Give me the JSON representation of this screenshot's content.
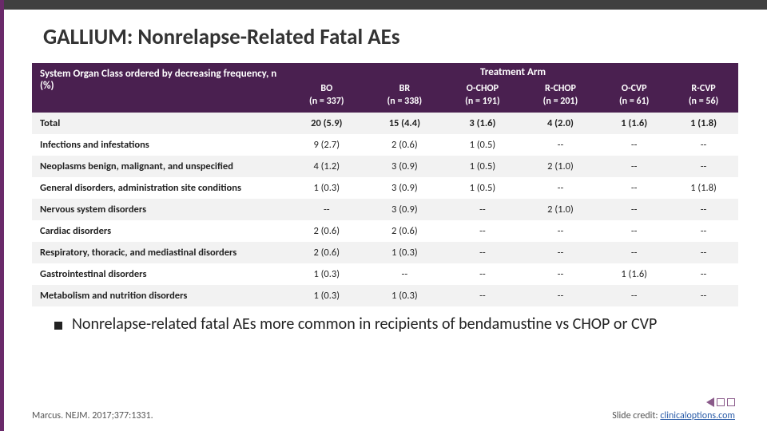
{
  "title": "GALLIUM: Nonrelapse-Related Fatal AEs",
  "table": {
    "row_header": "System Organ Class ordered by decreasing frequency, n (%)",
    "super_header": "Treatment Arm",
    "columns": [
      {
        "label": "BO",
        "n": "(n = 337)"
      },
      {
        "label": "BR",
        "n": "(n = 338)"
      },
      {
        "label": "O-CHOP",
        "n": "(n = 191)"
      },
      {
        "label": "R-CHOP",
        "n": "(n = 201)"
      },
      {
        "label": "O-CVP",
        "n": "(n = 61)"
      },
      {
        "label": "R-CVP",
        "n": "(n = 56)"
      }
    ],
    "rows": [
      {
        "label": "Total",
        "total": true,
        "cells": [
          "20 (5.9)",
          "15 (4.4)",
          "3 (1.6)",
          "4 (2.0)",
          "1 (1.6)",
          "1 (1.8)"
        ]
      },
      {
        "label": "Infections and infestations",
        "cells": [
          "9 (2.7)",
          "2 (0.6)",
          "1 (0.5)",
          "--",
          "--",
          "--"
        ]
      },
      {
        "label": "Neoplasms benign, malignant, and unspecified",
        "cells": [
          "4 (1.2)",
          "3 (0.9)",
          "1 (0.5)",
          "2 (1.0)",
          "--",
          "--"
        ]
      },
      {
        "label": "General disorders, administration site conditions",
        "cells": [
          "1 (0.3)",
          "3 (0.9)",
          "1 (0.5)",
          "--",
          "--",
          "1 (1.8)"
        ]
      },
      {
        "label": "Nervous system disorders",
        "cells": [
          "--",
          "3 (0.9)",
          "--",
          "2 (1.0)",
          "--",
          "--"
        ]
      },
      {
        "label": "Cardiac disorders",
        "cells": [
          "2 (0.6)",
          "2 (0.6)",
          "--",
          "--",
          "--",
          "--"
        ]
      },
      {
        "label": "Respiratory, thoracic, and mediastinal disorders",
        "cells": [
          "2 (0.6)",
          "1 (0.3)",
          "--",
          "--",
          "--",
          "--"
        ]
      },
      {
        "label": "Gastrointestinal disorders",
        "cells": [
          "1 (0.3)",
          "--",
          "--",
          "--",
          "1 (1.6)",
          "--"
        ]
      },
      {
        "label": "Metabolism and nutrition disorders",
        "cells": [
          "1 (0.3)",
          "1 (0.3)",
          "--",
          "--",
          "--",
          "--"
        ]
      }
    ]
  },
  "bullet": "Nonrelapse-related fatal AEs more common in recipients of bendamustine vs CHOP or CVP",
  "citation": "Marcus. NEJM. 2017;377:1331.",
  "credit_prefix": "Slide credit: ",
  "credit_link": "clinicaloptions.com",
  "colors": {
    "header_bg": "#4a2050",
    "topbar": "#404040",
    "leftbar": "#6a2a6a",
    "row_stripe": "#f2f2f2"
  }
}
